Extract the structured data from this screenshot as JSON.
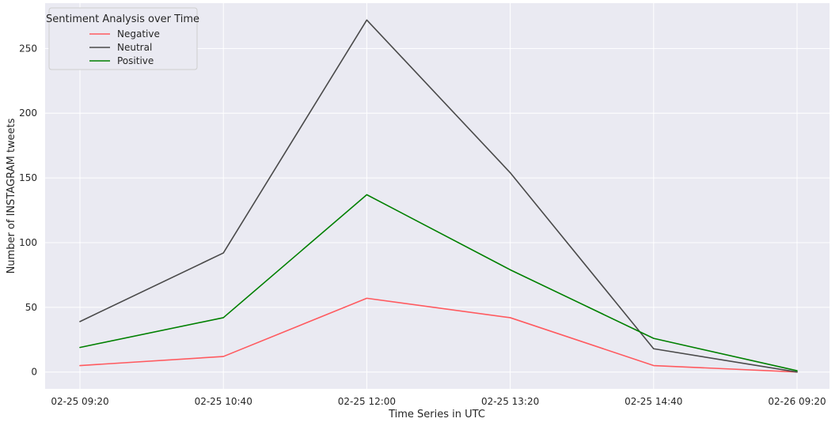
{
  "chart_data": {
    "type": "line",
    "categories": [
      "02-25 09:20",
      "02-25 10:40",
      "02-25 12:00",
      "02-25 13:20",
      "02-25 14:40",
      "02-26 09:20"
    ],
    "series": [
      {
        "name": "Negative",
        "color": "#ff5a5f",
        "values": [
          5,
          12,
          57,
          42,
          5,
          0
        ]
      },
      {
        "name": "Neutral",
        "color": "#4a4a4a",
        "values": [
          39,
          92,
          272,
          154,
          18,
          0
        ]
      },
      {
        "name": "Positive",
        "color": "#008000",
        "values": [
          19,
          42,
          137,
          79,
          26,
          1
        ]
      }
    ],
    "xlabel": "Time Series in UTC",
    "ylabel": "Number of INSTAGRAM tweets",
    "ylim": [
      -13,
      285
    ],
    "yticks": [
      0,
      50,
      100,
      150,
      200,
      250
    ],
    "legend": {
      "title": "Sentiment Analysis over Time",
      "placement": "top-left"
    },
    "grid": true,
    "background_color": "#eaeaf2",
    "grid_color": "#ffffff"
  }
}
